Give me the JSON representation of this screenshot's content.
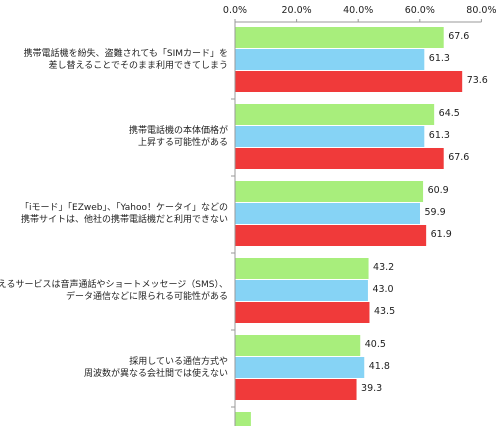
{
  "chart_data": {
    "type": "bar",
    "orientation": "horizontal",
    "x_ticks": [
      "0.0%",
      "20.0%",
      "40.0%",
      "60.0%",
      "80.0%"
    ],
    "xlim": [
      0,
      80
    ],
    "grid": false,
    "categories": [
      "携帯電話機を紛失、盗難されても「SIMカード」を\n差し替えることでそのまま利用できてしまう",
      "携帯電話機の本体価格が\n上昇する可能性がある",
      "「iモード」「EZweb」、「Yahoo！ケータイ」などの\n携帯サイトは、他社の携帯電話機だと利用できない",
      "使えるサービスは音声通話やショートメッセージ（SMS）、\nデータ通信などに限られる可能性がある",
      "採用している通信方式や\n周波数が異なる会社間では使えない",
      ""
    ],
    "series": [
      {
        "color": "#a8ee7c",
        "values": [
          67.6,
          64.5,
          60.9,
          43.2,
          40.5,
          5
        ]
      },
      {
        "color": "#86d3f5",
        "values": [
          61.3,
          61.3,
          59.9,
          43.0,
          41.8,
          null
        ]
      },
      {
        "color": "#f03a3a",
        "values": [
          73.6,
          67.6,
          61.9,
          43.5,
          39.3,
          null
        ]
      }
    ],
    "value_labels": [
      [
        "67.6",
        "64.5",
        "60.9",
        "43.2",
        "40.5",
        ""
      ],
      [
        "61.3",
        "61.3",
        "59.9",
        "43.0",
        "41.8",
        ""
      ],
      [
        "73.6",
        "67.6",
        "61.9",
        "43.5",
        "39.3",
        ""
      ]
    ]
  }
}
